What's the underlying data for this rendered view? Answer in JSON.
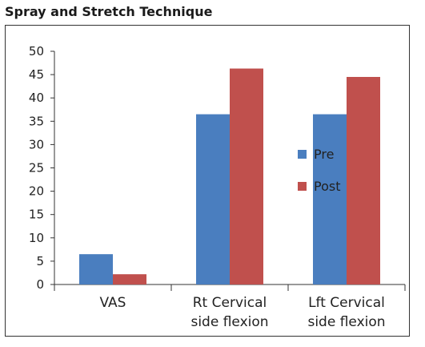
{
  "chart_data": {
    "type": "bar",
    "title": "Spray and Stretch Technique",
    "categories": [
      [
        "VAS"
      ],
      [
        "Rt Cervical",
        "side flexion"
      ],
      [
        "Lft Cervical",
        "side flexion"
      ]
    ],
    "series": [
      {
        "name": "Pre",
        "color": "#4a7ebf",
        "values": [
          6.5,
          36.5,
          36.5
        ]
      },
      {
        "name": "Post",
        "color": "#c0504d",
        "values": [
          2.2,
          46.3,
          44.5
        ]
      }
    ],
    "ylim": [
      0,
      50
    ],
    "yticks": [
      0,
      5,
      10,
      15,
      20,
      25,
      30,
      35,
      40,
      45,
      50
    ],
    "grid": false,
    "legend_position": "right"
  }
}
